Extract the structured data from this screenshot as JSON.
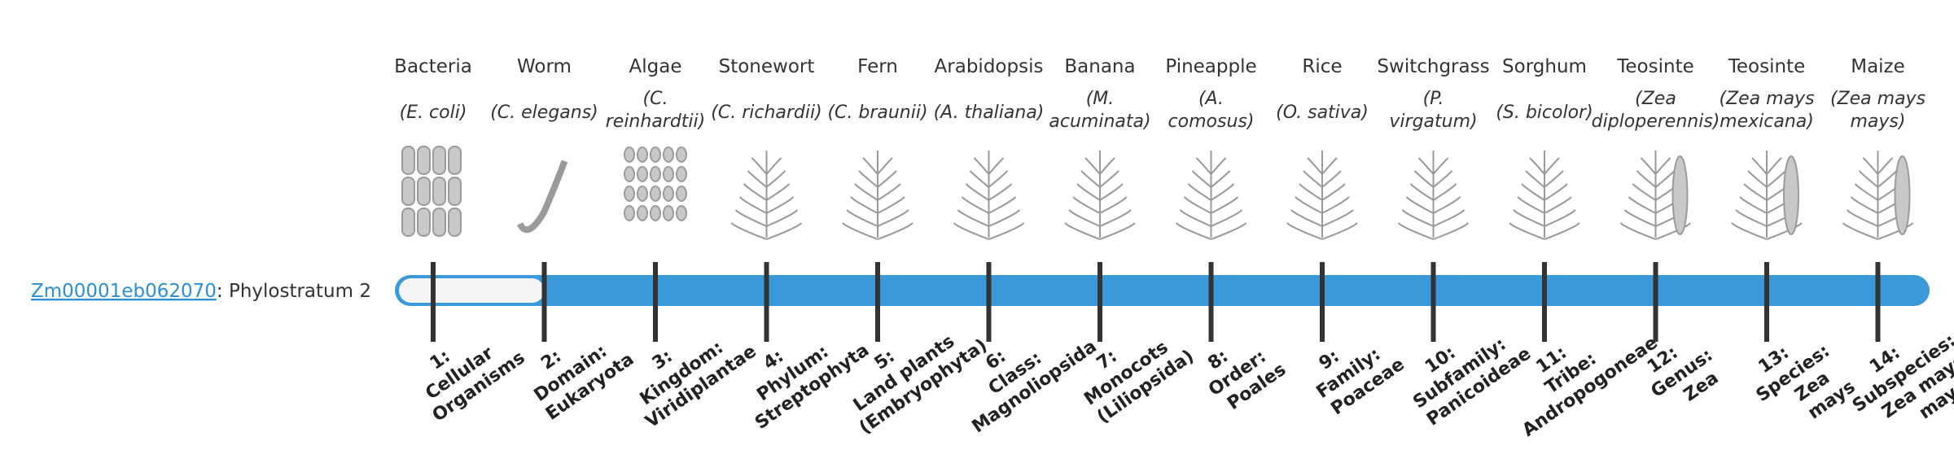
{
  "gene": {
    "id": "Zm00001eb062070",
    "status_text": ": Phylostratum 2",
    "phylostratum": 2
  },
  "organisms": [
    {
      "name": "Bacteria",
      "scientific": [
        "(E. coli)"
      ],
      "stratum": [
        "1:",
        "Cellular",
        "Organisms"
      ]
    },
    {
      "name": "Worm",
      "scientific": [
        "(C. elegans)"
      ],
      "stratum": [
        "2:",
        "Domain:",
        "Eukaryota"
      ]
    },
    {
      "name": "Algae",
      "scientific": [
        "(C.",
        "reinhardtii)"
      ],
      "stratum": [
        "3:",
        "Kingdom:",
        "Viridiplantae"
      ]
    },
    {
      "name": "Stonewort",
      "scientific": [
        "(C. richardii)"
      ],
      "stratum": [
        "4:",
        "Phylum:",
        "Streptophyta"
      ]
    },
    {
      "name": "Fern",
      "scientific": [
        "(C. braunii)"
      ],
      "stratum": [
        "5:",
        "Land plants",
        "(Embryophyta)"
      ]
    },
    {
      "name": "Arabidopsis",
      "scientific": [
        "(A. thaliana)"
      ],
      "stratum": [
        "6:",
        "Class:",
        "Magnoliopsida"
      ]
    },
    {
      "name": "Banana",
      "scientific": [
        "(M.",
        "acuminata)"
      ],
      "stratum": [
        "7:",
        "Monocots",
        "(Liliopsida)"
      ]
    },
    {
      "name": "Pineapple",
      "scientific": [
        "(A.",
        "comosus)"
      ],
      "stratum": [
        "8:",
        "Order:",
        "Poales"
      ]
    },
    {
      "name": "Rice",
      "scientific": [
        "(O. sativa)"
      ],
      "stratum": [
        "9:",
        "Family:",
        "Poaceae"
      ]
    },
    {
      "name": "Switchgrass",
      "scientific": [
        "(P.",
        "virgatum)"
      ],
      "stratum": [
        "10:",
        "Subfamily:",
        "Panicoideae"
      ]
    },
    {
      "name": "Sorghum",
      "scientific": [
        "(S. bicolor)"
      ],
      "stratum": [
        "11:",
        "Tribe:",
        "Andropogoneae"
      ]
    },
    {
      "name": "Teosinte",
      "scientific": [
        "(Zea",
        "diploperennis)"
      ],
      "stratum": [
        "12:",
        "Genus:",
        "Zea"
      ]
    },
    {
      "name": "Teosinte",
      "scientific": [
        "(Zea mays",
        "mexicana)"
      ],
      "stratum": [
        "13:",
        "Species:",
        "Zea",
        "mays"
      ]
    },
    {
      "name": "Maize",
      "scientific": [
        "(Zea mays",
        "mays)"
      ],
      "stratum": [
        "14:",
        "Subspecies:",
        "Zea mays",
        "mays"
      ]
    }
  ]
}
